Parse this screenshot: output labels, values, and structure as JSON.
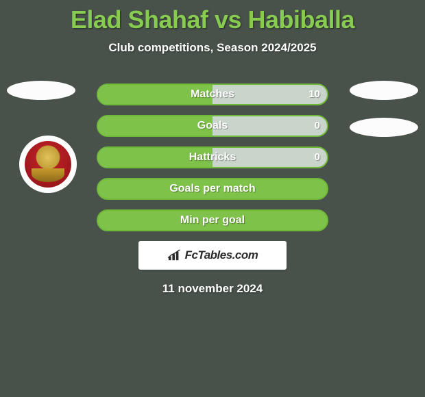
{
  "background_color": "#48524a",
  "title": {
    "text": "Elad Shahaf vs Habiballa",
    "color": "#87cc50",
    "fontsize": 36
  },
  "subtitle": {
    "text": "Club competitions, Season 2024/2025",
    "color": "#ffffff",
    "fontsize": 17
  },
  "stats": {
    "type": "bar",
    "bar_fill_color": "#7fc24a",
    "bar_track_color": "#c9d4cb",
    "bar_border_color": "#6fb83a",
    "text_color": "#ffffff",
    "label_fontsize": 16,
    "rows": [
      {
        "label": "Matches",
        "value": "10",
        "fill_pct": 50,
        "show_value": true
      },
      {
        "label": "Goals",
        "value": "0",
        "fill_pct": 50,
        "show_value": true
      },
      {
        "label": "Hattricks",
        "value": "0",
        "fill_pct": 50,
        "show_value": true
      },
      {
        "label": "Goals per match",
        "value": "",
        "fill_pct": 100,
        "show_value": false
      },
      {
        "label": "Min per goal",
        "value": "",
        "fill_pct": 100,
        "show_value": false
      }
    ]
  },
  "side_ovals": {
    "color": "#fcfcfc"
  },
  "club_badge": {
    "outer_bg": "#ffffff",
    "primary": "#b21e23",
    "secondary": "#c79a2e"
  },
  "watermark": {
    "text": "FcTables.com",
    "bg": "#ffffff",
    "text_color": "#2b2b2b"
  },
  "date": {
    "text": "11 november 2024",
    "color": "#ffffff",
    "fontsize": 17
  }
}
